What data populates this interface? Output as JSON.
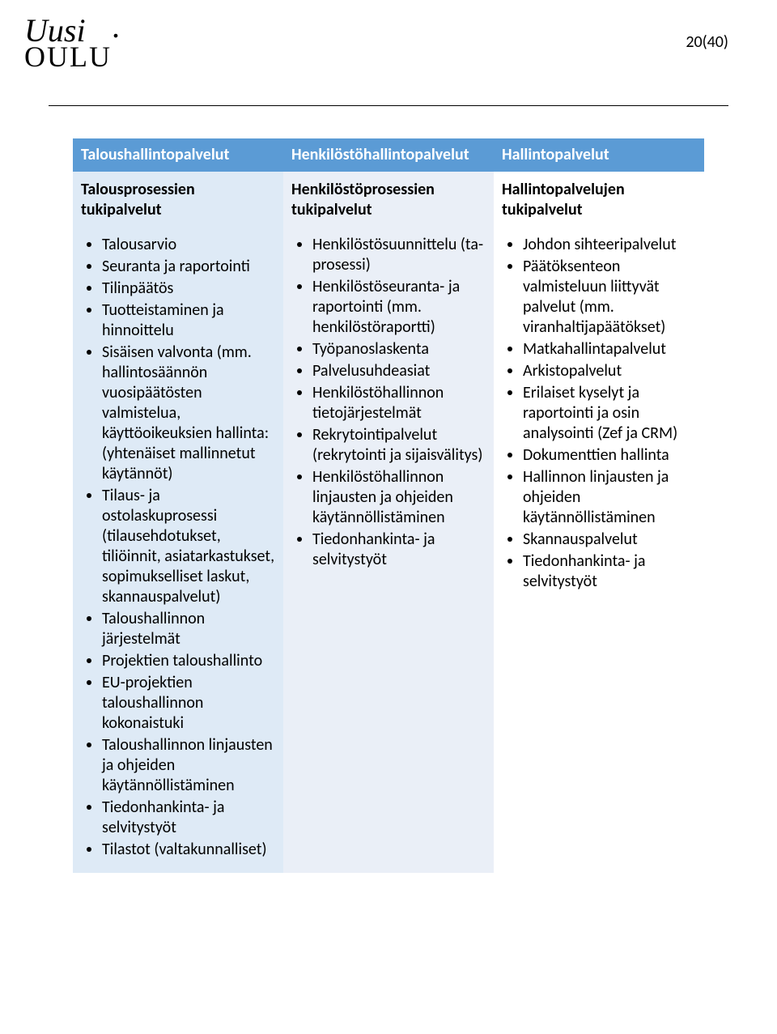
{
  "page_number": "20(40)",
  "logo": {
    "top": "Uusi",
    "bottom": "OULU"
  },
  "colors": {
    "header_bg_1": "#5b9bd5",
    "header_bg_2": "#5b9bd5",
    "header_bg_3": "#5b9bd5",
    "col1_bg": "#deeaf6",
    "col2_bg": "#eaeff7",
    "col3_bg": "#ffffff",
    "header_text": "#ffffff",
    "body_text": "#000000"
  },
  "columns": [
    {
      "header": "Taloushallintopalvelut",
      "subheader": "Talousprosessien tukipalvelut",
      "items": [
        "Talousarvio",
        "Seuranta ja raportointi",
        "Tilinpäätös",
        "Tuotteistaminen ja hinnoittelu",
        "Sisäisen valvonta (mm. hallintosäännön vuosipäätösten valmistelua, käyttöoikeuksien hallinta: (yhtenäiset mallinnetut käytännöt)",
        "Tilaus- ja ostolaskuprosessi (tilausehdotukset, tiliöinnit, asiatarkastukset, sopimukselliset laskut, skannauspalvelut)",
        "Taloushallinnon järjestelmät",
        "Projektien taloushallinto",
        "EU-projektien taloushallinnon kokonaistuki",
        "Taloushallinnon linjausten ja ohjeiden käytännöllistäminen",
        "Tiedonhankinta- ja selvitystyöt",
        "Tilastot (valtakunnalliset)"
      ]
    },
    {
      "header": "Henkilöstöhallintopalvelut",
      "subheader": "Henkilöstöprosessien tukipalvelut",
      "items": [
        "Henkilöstösuunnittelu (ta-prosessi)",
        "Henkilöstöseuranta- ja raportointi (mm. henkilöstöraportti)",
        "Työpanoslaskenta",
        "Palvelusuhdeasiat",
        "Henkilöstöhallinnon tietojärjestelmät",
        "Rekrytointipalvelut (rekrytointi ja sijaisvälitys)",
        "Henkilöstöhallinnon linjausten ja ohjeiden käytännöllistäminen",
        "Tiedonhankinta- ja selvitystyöt"
      ]
    },
    {
      "header": "Hallintopalvelut",
      "subheader": "Hallintopalvelujen tukipalvelut",
      "items": [
        "Johdon sihteeripalvelut",
        "Päätöksenteon valmisteluun liittyvät palvelut (mm. viranhaltijapäätökset)",
        "Matkahallintapalvelut",
        "Arkistopalvelut",
        "Erilaiset kyselyt ja raportointi ja osin analysointi (Zef ja CRM)",
        "Dokumenttien hallinta",
        "Hallinnon linjausten ja ohjeiden käytännöllistäminen",
        "Skannauspalvelut",
        "Tiedonhankinta- ja selvitystyöt"
      ]
    }
  ]
}
